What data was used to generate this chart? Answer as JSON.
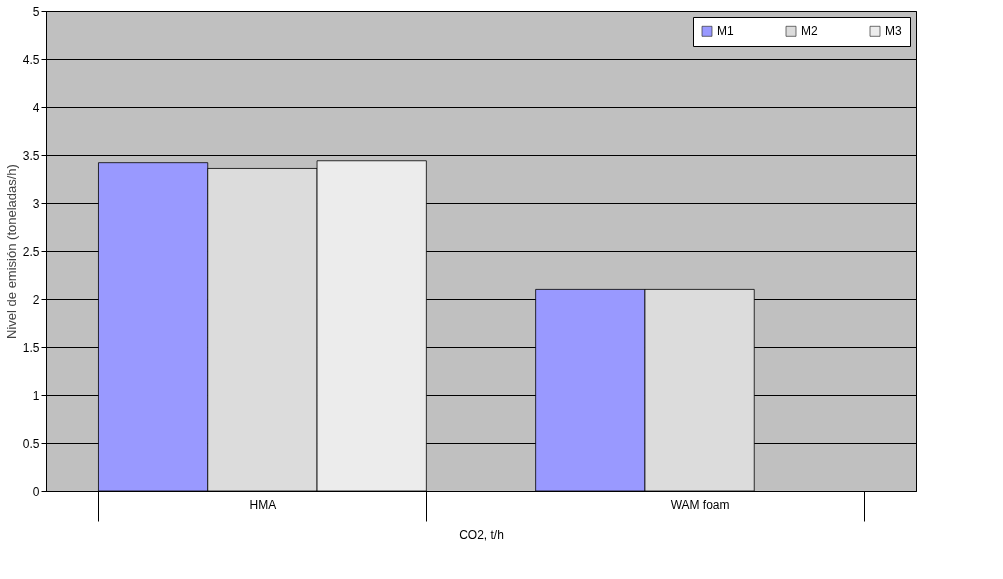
{
  "chart_data": {
    "type": "bar",
    "xlabel": "CO2, t/h",
    "ylabel": "Nivel de emisión (toneladas/h)",
    "categories": [
      "HMA",
      "WAM foam"
    ],
    "series": [
      {
        "name": "M1",
        "color": "#9999ff",
        "values": [
          3.42,
          2.1
        ]
      },
      {
        "name": "M2",
        "color": "#dcdcdc",
        "values": [
          3.36,
          2.1
        ]
      },
      {
        "name": "M3",
        "color": "#ececec",
        "values": [
          3.44,
          null
        ]
      }
    ],
    "ylim": [
      0,
      5
    ],
    "yticks": [
      0,
      0.5,
      1,
      1.5,
      2,
      2.5,
      3,
      3.5,
      4,
      4.5,
      5
    ],
    "grid": "y",
    "legend": "top right"
  }
}
